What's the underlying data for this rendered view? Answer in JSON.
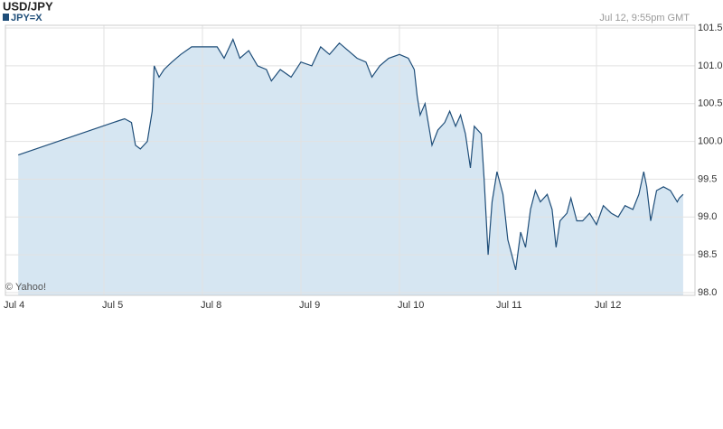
{
  "chart_data": {
    "type": "area",
    "title": "USD/JPY",
    "timestamp": "Jul 12, 9:55pm GMT",
    "credit": "© Yahoo!",
    "series": [
      {
        "name": "JPY=X",
        "color": "#1f4e79",
        "fill": "#d6e6f2",
        "x": [
          0.13,
          1.14,
          1.21,
          1.28,
          1.32,
          1.37,
          1.44,
          1.49,
          1.51,
          1.56,
          1.61,
          1.69,
          1.78,
          1.89,
          2.15,
          2.22,
          2.31,
          2.38,
          2.47,
          2.56,
          2.65,
          2.7,
          2.79,
          2.9,
          3.0,
          3.11,
          3.2,
          3.29,
          3.39,
          3.48,
          3.57,
          3.66,
          3.72,
          3.8,
          3.89,
          4.0,
          4.09,
          4.15,
          4.18,
          4.21,
          4.26,
          4.33,
          4.39,
          4.46,
          4.51,
          4.57,
          4.62,
          4.67,
          4.72,
          4.76,
          4.83,
          4.86,
          4.9,
          4.94,
          4.99,
          5.05,
          5.1,
          5.15,
          5.18,
          5.23,
          5.28,
          5.33,
          5.38,
          5.43,
          5.5,
          5.55,
          5.59,
          5.63,
          5.7,
          5.74,
          5.8,
          5.86,
          5.93,
          6.0,
          6.07,
          6.15,
          6.22,
          6.29,
          6.37,
          6.43,
          6.48,
          6.51,
          6.55,
          6.61,
          6.68,
          6.75,
          6.82,
          6.84,
          6.88
        ],
        "values": [
          99.82,
          100.27,
          100.3,
          100.25,
          99.95,
          99.9,
          100.0,
          100.4,
          101.0,
          100.85,
          100.95,
          101.05,
          101.15,
          101.25,
          101.25,
          101.1,
          101.35,
          101.1,
          101.2,
          101.0,
          100.95,
          100.8,
          100.95,
          100.85,
          101.05,
          101.0,
          101.25,
          101.15,
          101.3,
          101.2,
          101.1,
          101.05,
          100.85,
          101.0,
          101.1,
          101.15,
          101.1,
          100.95,
          100.6,
          100.35,
          100.5,
          99.95,
          100.15,
          100.25,
          100.4,
          100.2,
          100.35,
          100.1,
          99.65,
          100.2,
          100.1,
          99.5,
          98.5,
          99.2,
          99.6,
          99.3,
          98.7,
          98.45,
          98.3,
          98.8,
          98.6,
          99.1,
          99.35,
          99.2,
          99.3,
          99.1,
          98.6,
          98.95,
          99.05,
          99.25,
          98.95,
          98.95,
          99.05,
          98.9,
          99.15,
          99.05,
          99.0,
          99.15,
          99.1,
          99.3,
          99.6,
          99.4,
          98.95,
          99.35,
          99.4,
          99.35,
          99.2,
          99.25,
          99.3
        ]
      }
    ],
    "xlim": [
      0,
      7
    ],
    "xticks": [
      {
        "value": 0,
        "label": "Jul 4"
      },
      {
        "value": 1,
        "label": "Jul 5"
      },
      {
        "value": 2,
        "label": "Jul 8"
      },
      {
        "value": 3,
        "label": "Jul 9"
      },
      {
        "value": 4,
        "label": "Jul 10"
      },
      {
        "value": 5,
        "label": "Jul 11"
      },
      {
        "value": 6,
        "label": "Jul 12"
      }
    ],
    "ylim": [
      98,
      101.5
    ],
    "yticks": [
      {
        "value": 98,
        "label": "98.0"
      },
      98.5,
      {
        "value": 99,
        "label": "99.0"
      },
      99.5,
      {
        "value": 100,
        "label": "100.0"
      },
      100.5,
      {
        "value": 101,
        "label": "101.0"
      },
      101.5
    ],
    "grid": true
  }
}
